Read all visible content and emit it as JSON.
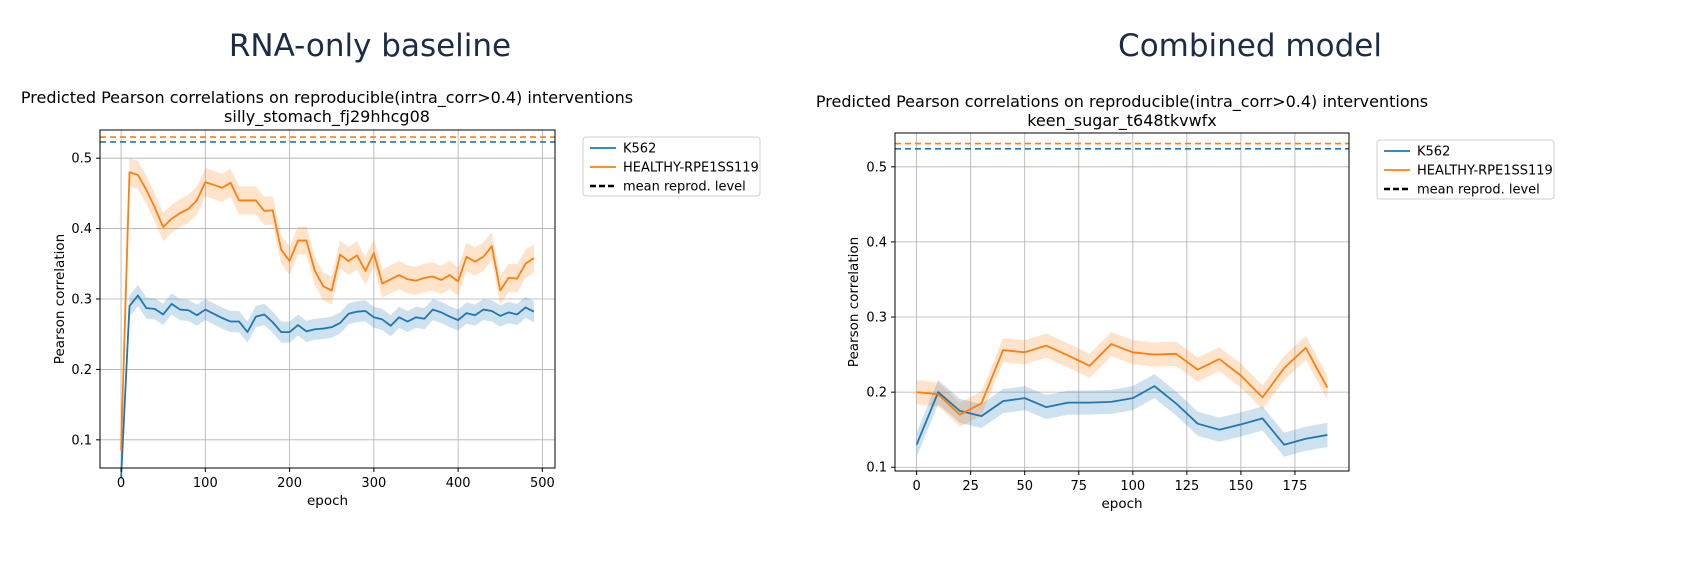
{
  "panels": {
    "left_heading": "RNA-only baseline",
    "right_heading": "Combined model"
  },
  "colors": {
    "k562": "#1f77b4",
    "rpe": "#ff7f0e",
    "grid": "#b0b0b0",
    "heading": "#1c2b46"
  },
  "chart_data": [
    {
      "type": "line",
      "title": "Predicted Pearson correlations on reproducible(intra_corr>0.4) interventions",
      "subtitle": "silly_stomach_fj29hhcg08",
      "xlabel": "epoch",
      "ylabel": "Pearson correlation",
      "xlim": [
        -25,
        515
      ],
      "ylim": [
        0.06,
        0.54
      ],
      "xticks": [
        0,
        100,
        200,
        300,
        400,
        500
      ],
      "xtick_labels": [
        "0",
        "100",
        "200",
        "300",
        "400",
        "500"
      ],
      "yticks": [
        0.1,
        0.2,
        0.3,
        0.4,
        0.5
      ],
      "ytick_labels": [
        "0.1",
        "0.2",
        "0.3",
        "0.4",
        "0.5"
      ],
      "grid": true,
      "legend": [
        "K562",
        "HEALTHY-RPE1SS119",
        "mean reprod. level"
      ],
      "legend_position": "outside-right-top",
      "x": [
        0,
        10,
        20,
        30,
        40,
        50,
        60,
        70,
        80,
        90,
        100,
        110,
        120,
        130,
        140,
        150,
        160,
        170,
        180,
        190,
        200,
        210,
        220,
        230,
        240,
        250,
        260,
        270,
        280,
        290,
        300,
        310,
        320,
        330,
        340,
        350,
        360,
        370,
        380,
        390,
        400,
        410,
        420,
        430,
        440,
        450,
        460,
        470,
        480,
        490
      ],
      "series": [
        {
          "name": "K562",
          "values": [
            0.045,
            0.29,
            0.305,
            0.287,
            0.286,
            0.278,
            0.293,
            0.285,
            0.284,
            0.277,
            0.285,
            0.279,
            0.273,
            0.268,
            0.268,
            0.253,
            0.275,
            0.278,
            0.267,
            0.253,
            0.253,
            0.263,
            0.254,
            0.257,
            0.258,
            0.26,
            0.266,
            0.279,
            0.282,
            0.283,
            0.274,
            0.271,
            0.262,
            0.274,
            0.268,
            0.274,
            0.272,
            0.285,
            0.281,
            0.275,
            0.27,
            0.28,
            0.277,
            0.285,
            0.283,
            0.276,
            0.281,
            0.278,
            0.288,
            0.282
          ],
          "band": 0.015
        },
        {
          "name": "HEALTHY-RPE1SS119",
          "values": [
            0.085,
            0.48,
            0.476,
            0.455,
            0.43,
            0.402,
            0.414,
            0.422,
            0.428,
            0.44,
            0.466,
            0.462,
            0.458,
            0.465,
            0.44,
            0.44,
            0.44,
            0.425,
            0.426,
            0.37,
            0.354,
            0.383,
            0.383,
            0.34,
            0.318,
            0.312,
            0.363,
            0.354,
            0.362,
            0.34,
            0.365,
            0.322,
            0.328,
            0.334,
            0.328,
            0.326,
            0.33,
            0.332,
            0.327,
            0.334,
            0.325,
            0.36,
            0.353,
            0.36,
            0.375,
            0.312,
            0.33,
            0.329,
            0.35,
            0.358
          ],
          "band": 0.02
        }
      ],
      "reference_lines": [
        {
          "name": "K562 mean reprod. level",
          "value": 0.523
        },
        {
          "name": "HEALTHY-RPE1SS119 mean reprod. level",
          "value": 0.53
        }
      ]
    },
    {
      "type": "line",
      "title": "Predicted Pearson correlations on reproducible(intra_corr>0.4) interventions",
      "subtitle": "keen_sugar_t648tkvwfx",
      "xlabel": "epoch",
      "ylabel": "Pearson correlation",
      "xlim": [
        -10,
        200
      ],
      "ylim": [
        0.095,
        0.545
      ],
      "xticks": [
        0,
        25,
        50,
        75,
        100,
        125,
        150,
        175
      ],
      "xtick_labels": [
        "0",
        "25",
        "50",
        "75",
        "100",
        "125",
        "150",
        "175"
      ],
      "yticks": [
        0.1,
        0.2,
        0.3,
        0.4,
        0.5
      ],
      "ytick_labels": [
        "0.1",
        "0.2",
        "0.3",
        "0.4",
        "0.5"
      ],
      "grid": true,
      "legend": [
        "K562",
        "HEALTHY-RPE1SS119",
        "mean reprod. level"
      ],
      "legend_position": "outside-right-top",
      "x": [
        0,
        10,
        20,
        30,
        40,
        50,
        60,
        70,
        80,
        90,
        100,
        110,
        120,
        130,
        140,
        150,
        160,
        170,
        180,
        190
      ],
      "series": [
        {
          "name": "K562",
          "values": [
            0.13,
            0.2,
            0.175,
            0.168,
            0.188,
            0.192,
            0.18,
            0.186,
            0.186,
            0.187,
            0.192,
            0.208,
            0.185,
            0.158,
            0.15,
            0.157,
            0.165,
            0.13,
            0.138,
            0.143
          ],
          "band": 0.016
        },
        {
          "name": "HEALTHY-RPE1SS119",
          "values": [
            0.2,
            0.197,
            0.17,
            0.185,
            0.256,
            0.253,
            0.262,
            0.249,
            0.235,
            0.264,
            0.253,
            0.25,
            0.251,
            0.23,
            0.244,
            0.222,
            0.193,
            0.232,
            0.259,
            0.206
          ],
          "band": 0.016
        }
      ],
      "reference_lines": [
        {
          "name": "K562 mean reprod. level",
          "value": 0.524
        },
        {
          "name": "HEALTHY-RPE1SS119 mean reprod. level",
          "value": 0.531
        }
      ]
    }
  ]
}
